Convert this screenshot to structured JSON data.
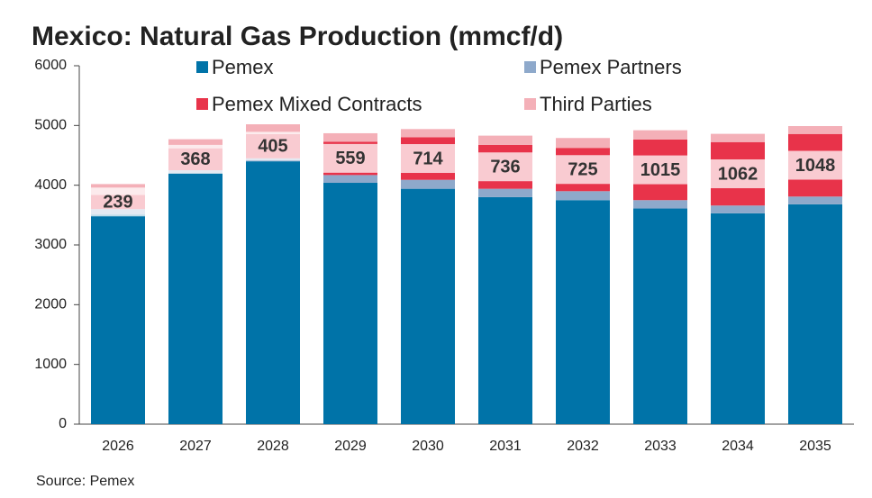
{
  "chart_data": {
    "type": "stacked_bar",
    "title": "Mexico: Natural Gas Production (mmcf/d)",
    "source": "Source: Pemex",
    "categories": [
      "2026",
      "2027",
      "2028",
      "2029",
      "2030",
      "2031",
      "2032",
      "2033",
      "2034",
      "2035"
    ],
    "series": [
      {
        "name": "Pemex",
        "color": "#0073a8",
        "values": [
          3510,
          4200,
          4400,
          4040,
          3940,
          3800,
          3750,
          3610,
          3530,
          3680
        ]
      },
      {
        "name": "Pemex Partners",
        "color": "#8ea9cb",
        "values": [
          90,
          50,
          50,
          130,
          150,
          140,
          150,
          140,
          130,
          130
        ]
      },
      {
        "name": "Pemex Mixed Contracts",
        "color": "#e8334a",
        "values": [
          239,
          368,
          405,
          559,
          714,
          736,
          725,
          1015,
          1062,
          1048
        ],
        "show_labels": true
      },
      {
        "name": "Third Parties",
        "color": "#f4b0b8",
        "values": [
          180,
          152,
          165,
          141,
          136,
          154,
          165,
          155,
          138,
          132
        ]
      }
    ],
    "ylim": [
      0,
      6000
    ],
    "yticks": [
      0,
      1000,
      2000,
      3000,
      4000,
      5000,
      6000
    ],
    "legend": "top",
    "grid": false
  }
}
